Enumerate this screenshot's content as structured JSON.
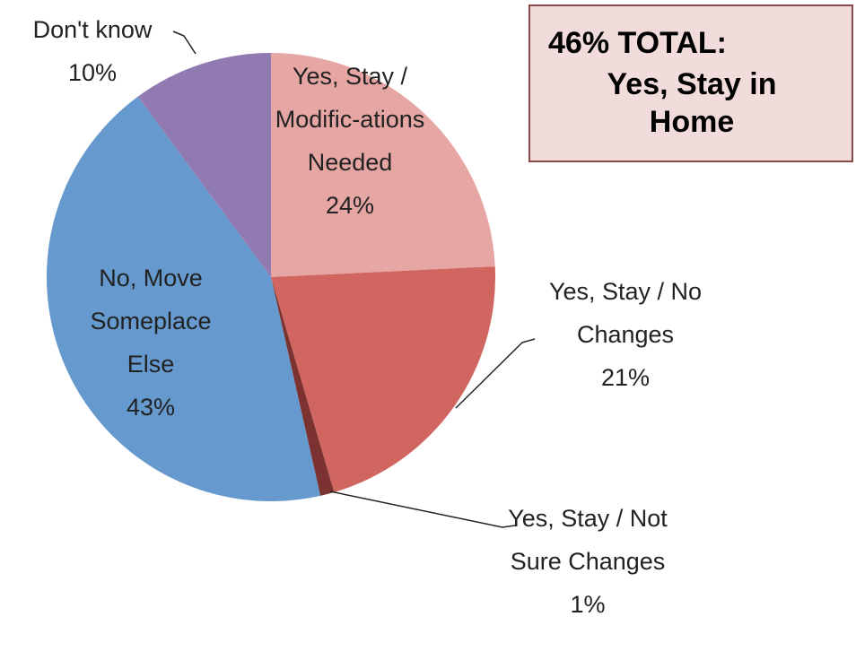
{
  "chart_data": {
    "type": "pie",
    "categories": [
      "Yes, Stay / Modific-ations Needed",
      "Yes, Stay / No Changes",
      "Yes, Stay / Not Sure Changes",
      "No, Move Someplace Else",
      "Don't know"
    ],
    "values": [
      24,
      21,
      1,
      43,
      10
    ],
    "value_labels": [
      "24%",
      "21%",
      "1%",
      "43%",
      "10%"
    ],
    "colors": [
      "#e6a6a4",
      "#d0665f",
      "#7b3230",
      "#6699cd",
      "#9179b2"
    ],
    "annotation": {
      "heading": "46% TOTAL:",
      "text": "Yes, Stay in Home"
    }
  }
}
